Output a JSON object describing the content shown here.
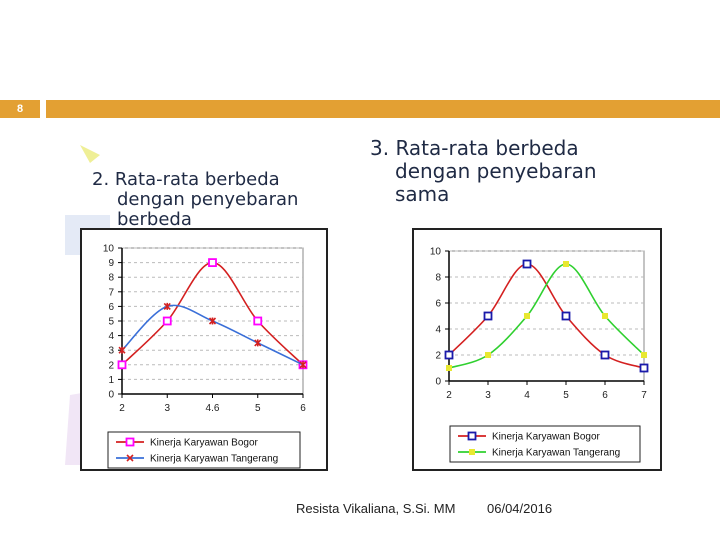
{
  "slide": {
    "number": "8",
    "footer_author": "Resista Vikaliana, S.Si. MM",
    "footer_date": "06/04/2016"
  },
  "headings": {
    "left": {
      "line1": "2. Rata-rata berbeda",
      "line2": "dengan penyebaran",
      "line3": "berbeda"
    },
    "right": {
      "line1": "3. Rata-rata berbeda",
      "line2": "dengan penyebaran",
      "line3": "sama"
    }
  },
  "colors": {
    "accent": "#e3a033",
    "bogor": "#ff00ff",
    "bogor_line": "#d42020",
    "tangerang": "#3a6fd8",
    "bogor2": "#1a1aaa",
    "green": "#2fd02f",
    "yellow": "#e8e830"
  },
  "chart_data": [
    {
      "type": "line",
      "title": "2. Rata-rata berbeda dengan penyebaran berbeda",
      "categories": [
        "2",
        "3",
        "4.6",
        "5",
        "6"
      ],
      "yticks": [
        "0",
        "1",
        "2",
        "3",
        "4",
        "5",
        "6",
        "7",
        "8",
        "9",
        "10"
      ],
      "ylim": [
        0,
        10
      ],
      "series": [
        {
          "name": "Kinerja Karyawan Bogor",
          "values": [
            2,
            5,
            9,
            5,
            2
          ]
        },
        {
          "name": "Kinerja Karyawan Tangerang",
          "values": [
            3,
            6,
            5,
            3.5,
            2
          ]
        }
      ]
    },
    {
      "type": "line",
      "title": "3. Rata-rata berbeda dengan penyebaran sama",
      "categories": [
        "2",
        "3",
        "4",
        "5",
        "6",
        "7"
      ],
      "yticks": [
        "0",
        "2",
        "4",
        "6",
        "8",
        "10"
      ],
      "ylim": [
        0,
        10
      ],
      "series": [
        {
          "name": "Kinerja Karyawan Bogor",
          "values": [
            2,
            5,
            9,
            5,
            2,
            1
          ]
        },
        {
          "name": "Kinerja Karyawan Tangerang",
          "values": [
            1,
            2,
            5,
            9,
            5,
            2
          ]
        }
      ]
    }
  ]
}
